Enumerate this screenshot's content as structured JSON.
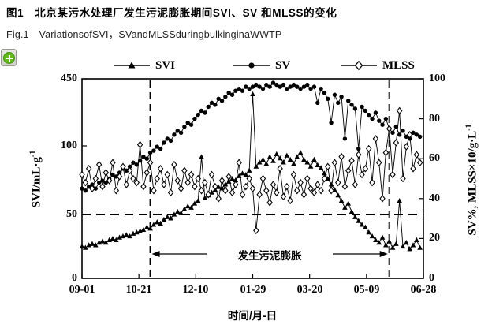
{
  "header": {
    "title_cn": "图1　北京某污水处理厂发生污泥膨胀期间SVI、SV 和MLSS的变化",
    "title_en": "Fig.1　VariationsofSVI，SVandMLSSduringbulkinginaWWTP"
  },
  "toolbar": {
    "zoom_icon_color": "#63bb1c"
  },
  "chart_data": {
    "type": "line",
    "xlabel": "时间/月-日",
    "ylabel_left_base": "SVI/mL·g",
    "ylabel_left_sup": "-1",
    "ylabel_right_base": "SV%, MLSS×10/g·L",
    "ylabel_right_sup": "-1",
    "x_tick_labels": [
      "09-01",
      "10-21",
      "12-10",
      "01-29",
      "03-20",
      "05-09",
      "06-28"
    ],
    "x_range_days": [
      0,
      300
    ],
    "x_tick_interval_days": 50,
    "left_axis": {
      "tick_values": [
        0,
        50,
        100,
        450
      ],
      "tick_labels": [
        "0",
        "50",
        "100",
        "450"
      ]
    },
    "right_axis": {
      "tick_values": [
        0,
        20,
        40,
        60,
        80,
        100
      ],
      "tick_labels": [
        "0",
        "20",
        "40",
        "60",
        "80",
        "100"
      ],
      "range": [
        0,
        100
      ]
    },
    "legend": [
      {
        "label": "SVI",
        "marker": "triangle-filled"
      },
      {
        "label": "SV",
        "marker": "circle-filled"
      },
      {
        "label": "MLSS",
        "marker": "diamond-open"
      }
    ],
    "grid": false,
    "day_step": 3,
    "series": [
      {
        "name": "SVI",
        "axis": "left",
        "marker": "triangle",
        "values": [
          25,
          24,
          26,
          27,
          26,
          28,
          29,
          28,
          30,
          31,
          30,
          32,
          33,
          34,
          33,
          35,
          36,
          37,
          38,
          40,
          39,
          42,
          44,
          43,
          46,
          48,
          47,
          50,
          52,
          51,
          54,
          56,
          55,
          58,
          60,
          92,
          62,
          64,
          66,
          68,
          70,
          69,
          72,
          74,
          76,
          75,
          78,
          80,
          79,
          82,
          370,
          85,
          88,
          90,
          87,
          92,
          89,
          94,
          91,
          88,
          93,
          90,
          87,
          92,
          95,
          90,
          88,
          85,
          90,
          86,
          84,
          80,
          76,
          72,
          68,
          64,
          60,
          55,
          58,
          52,
          48,
          45,
          42,
          40,
          36,
          33,
          30,
          28,
          32,
          26,
          29,
          24,
          27,
          60,
          25,
          28,
          23,
          26,
          30,
          24
        ]
      },
      {
        "name": "SV",
        "axis": "right",
        "marker": "circle",
        "values": [
          45,
          44,
          46,
          47,
          45,
          48,
          49,
          48,
          50,
          52,
          51,
          53,
          55,
          54,
          56,
          58,
          57,
          59,
          61,
          60,
          63,
          64,
          66,
          65,
          68,
          70,
          69,
          72,
          74,
          73,
          76,
          78,
          77,
          80,
          82,
          84,
          83,
          86,
          88,
          87,
          90,
          89,
          91,
          93,
          92,
          94,
          95,
          94,
          96,
          95,
          96,
          97,
          96,
          95,
          97,
          96,
          98,
          97,
          96,
          97,
          95,
          96,
          97,
          96,
          95,
          96,
          97,
          95,
          96,
          88,
          95,
          93,
          90,
          78,
          92,
          88,
          91,
          70,
          89,
          87,
          85,
          65,
          86,
          84,
          82,
          80,
          83,
          79,
          77,
          80,
          75,
          73,
          76,
          72,
          74,
          71,
          70,
          73,
          72,
          71
        ]
      },
      {
        "name": "MLSS",
        "axis": "right",
        "marker": "diamond",
        "values": [
          52,
          48,
          55,
          45,
          50,
          57,
          46,
          53,
          49,
          58,
          44,
          51,
          56,
          47,
          54,
          50,
          48,
          67,
          46,
          53,
          58,
          44,
          50,
          55,
          47,
          52,
          43,
          57,
          49,
          45,
          54,
          48,
          52,
          46,
          50,
          44,
          48,
          42,
          52,
          46,
          40,
          49,
          44,
          51,
          43,
          47,
          58,
          42,
          46,
          50,
          45,
          24,
          42,
          50,
          44,
          38,
          47,
          43,
          55,
          41,
          46,
          39,
          52,
          44,
          48,
          42,
          50,
          45,
          43,
          47,
          44,
          50,
          56,
          44,
          58,
          48,
          61,
          46,
          54,
          59,
          47,
          62,
          52,
          55,
          65,
          48,
          70,
          58,
          40,
          63,
          75,
          52,
          68,
          84,
          50,
          66,
          72,
          55,
          62,
          58
        ]
      }
    ],
    "annotation": {
      "text": "发生污泥膨胀",
      "region_days": [
        60,
        270
      ],
      "threshold_left_value": 50
    }
  }
}
